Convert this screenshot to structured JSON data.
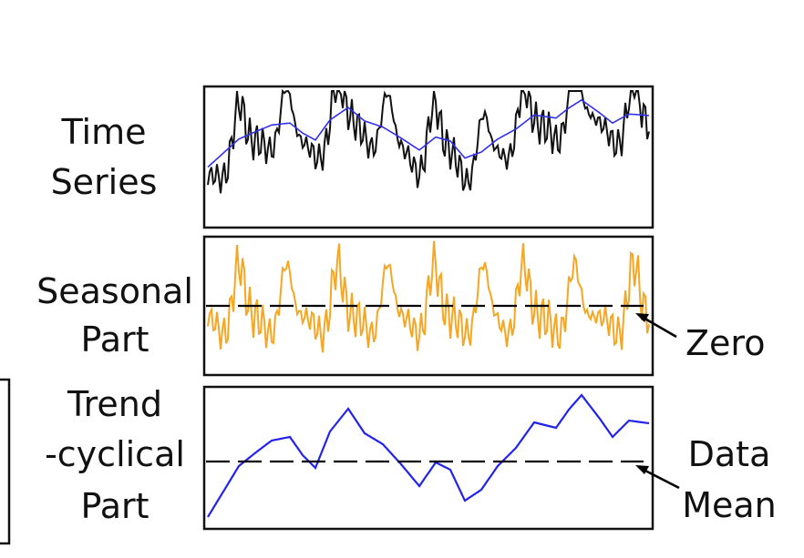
{
  "labels": {
    "time_series": [
      "Time",
      "Series"
    ],
    "seasonal": [
      "Seasonal",
      "Part"
    ],
    "trend": [
      "Trend",
      "-cyclical",
      "Part"
    ],
    "zero_annotation": "Zero",
    "mean_annotation": [
      "Data",
      "Mean"
    ]
  },
  "colors": {
    "raw_series": "#111111",
    "smoothed_series": "#3030ee",
    "seasonal_series": "#f5a623",
    "trend_series": "#2222ee",
    "reference_line": "#000000"
  }
}
